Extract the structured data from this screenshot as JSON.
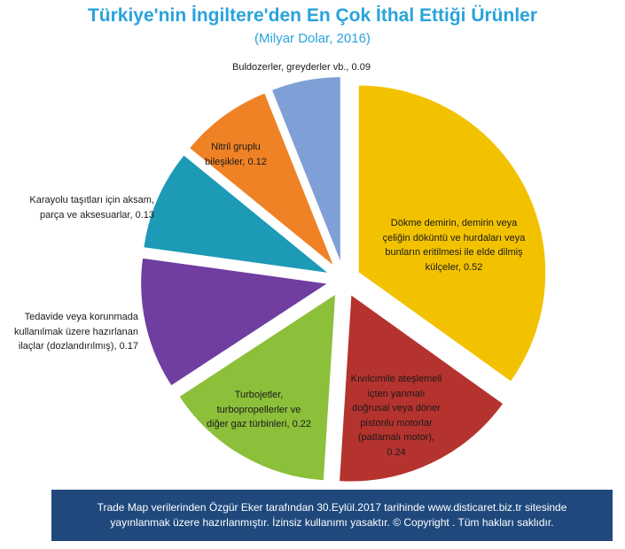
{
  "chart_data": {
    "type": "pie",
    "title": "Türkiye'nin İngiltere'den En Çok İthal Ettiği Ürünler",
    "subtitle": "(Milyar Dolar, 2016)",
    "slices": [
      {
        "label": "Dökme demirin, demirin veya çeliğin döküntü ve hurdaları veya bunların eritilmesi ile elde dilmiş külçeler",
        "value": 0.52,
        "text": "Dökme demirin, demirin veya çeliğin döküntü ve hurdaları veya bunların eritilmesi ile elde dilmiş külçeler, 0.52",
        "color": "#f2c200"
      },
      {
        "label": "Kıvılcımile ateşlemeli içten yanmalı doğrusal veya döner pistonlu motorlar (patlamalı motor)",
        "value": 0.24,
        "text": "Kıvılcımile ateşlemeli içten yanmalı doğrusal veya döner pistonlu motorlar (patlamalı motor), 0.24",
        "color": "#b5332e"
      },
      {
        "label": "Turbojetler, turbopropellerler ve diğer gaz türbinleri",
        "value": 0.22,
        "text": "Turbojetler, turbopropellerler ve diğer gaz türbinleri, 0.22",
        "color": "#8cbf3a"
      },
      {
        "label": "Tedavide veya korunmada kullanılmak üzere hazırlanan ilaçlar (dozlandırılmış)",
        "value": 0.17,
        "text": "Tedavide veya korunmada kullanılmak üzere hazırlanan ilaçlar (dozlandırılmış),  0.17",
        "color": "#6f3ea0"
      },
      {
        "label": "Karayolu taşıtları için aksam, parça ve aksesuarlar",
        "value": 0.13,
        "text": "Karayolu taşıtları  için aksam, parça ve aksesuarlar, 0.13",
        "color": "#1c9ab6"
      },
      {
        "label": "Nitril gruplu bileşikler",
        "value": 0.12,
        "text": "Nitril gruplu bileşikler, 0.12",
        "color": "#ef8225"
      },
      {
        "label": "Buldozerler, greyderler vb.",
        "value": 0.09,
        "text": "Buldozerler, greyderler vb., 0.09",
        "color": "#7fa0d6"
      }
    ]
  },
  "footer": {
    "line1": "Trade Map verilerinden Özgür Eker tarafından 30.Eylül.2017  tarihinde www.disticaret.biz.tr  sitesinde",
    "line2": "yayınlanmak üzere hazırlanmıştır. İzinsiz kullanımı yasaktır. © Copyright . Tüm hakları saklıdır."
  }
}
